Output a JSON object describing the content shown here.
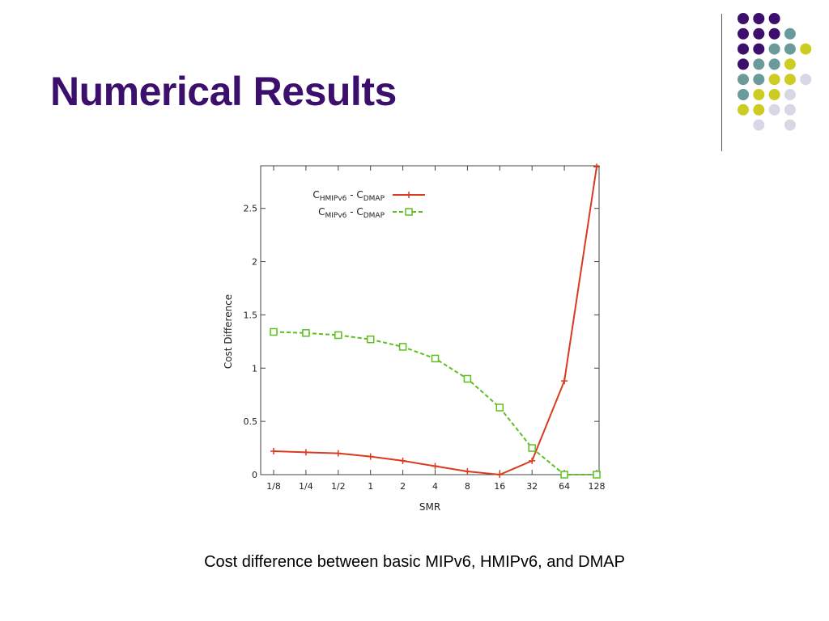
{
  "slide": {
    "title": "Numerical Results",
    "caption": "Cost difference between basic MIPv6, HMIPv6, and DMAP"
  },
  "colors": {
    "title": "#3b0f6b",
    "dot_purple": "#3b0f6b",
    "dot_teal": "#6b9a9a",
    "dot_yellow": "#cccc22",
    "dot_lavender": "#d7d7e6"
  },
  "decoration": {
    "dot_rows": [
      [
        "purple",
        "purple",
        "purple",
        "",
        ""
      ],
      [
        "purple",
        "purple",
        "purple",
        "teal",
        ""
      ],
      [
        "purple",
        "purple",
        "teal",
        "teal",
        "yellow"
      ],
      [
        "purple",
        "teal",
        "teal",
        "yellow",
        ""
      ],
      [
        "teal",
        "teal",
        "yellow",
        "yellow",
        "lavender"
      ],
      [
        "teal",
        "yellow",
        "yellow",
        "lavender",
        ""
      ],
      [
        "yellow",
        "yellow",
        "lavender",
        "lavender",
        ""
      ],
      [
        "",
        "lavender",
        "",
        "lavender",
        ""
      ]
    ]
  },
  "chart_data": {
    "type": "line",
    "xlabel": "SMR",
    "ylabel": "Cost Difference",
    "categories": [
      "1/8",
      "1/4",
      "1/2",
      "1",
      "2",
      "4",
      "8",
      "16",
      "32",
      "64",
      "128"
    ],
    "ylim": [
      0,
      2.9
    ],
    "yticks": [
      {
        "value": 0,
        "label": "0"
      },
      {
        "value": 0.5,
        "label": "0.5"
      },
      {
        "value": 1,
        "label": "1"
      },
      {
        "value": 1.5,
        "label": "1.5"
      },
      {
        "value": 2,
        "label": "2"
      },
      {
        "value": 2.5,
        "label": "2.5"
      }
    ],
    "grid": false,
    "legend_position": "top-left",
    "series": [
      {
        "legend": {
          "main": "C",
          "sub1": "HMIPv6",
          "mid": " - C",
          "sub2": "DMAP"
        },
        "color": "#d93b1f",
        "marker": "plus",
        "dashed": false,
        "values": [
          0.22,
          0.21,
          0.2,
          0.17,
          0.13,
          0.08,
          0.03,
          0.0,
          0.13,
          0.88,
          2.89
        ]
      },
      {
        "legend": {
          "main": "C",
          "sub1": "MIPv6",
          "mid": " - C",
          "sub2": "DMAP"
        },
        "color": "#5cbf1e",
        "marker": "square",
        "dashed": true,
        "values": [
          1.34,
          1.33,
          1.31,
          1.27,
          1.2,
          1.09,
          0.9,
          0.63,
          0.25,
          0.0,
          0.0
        ]
      }
    ]
  }
}
